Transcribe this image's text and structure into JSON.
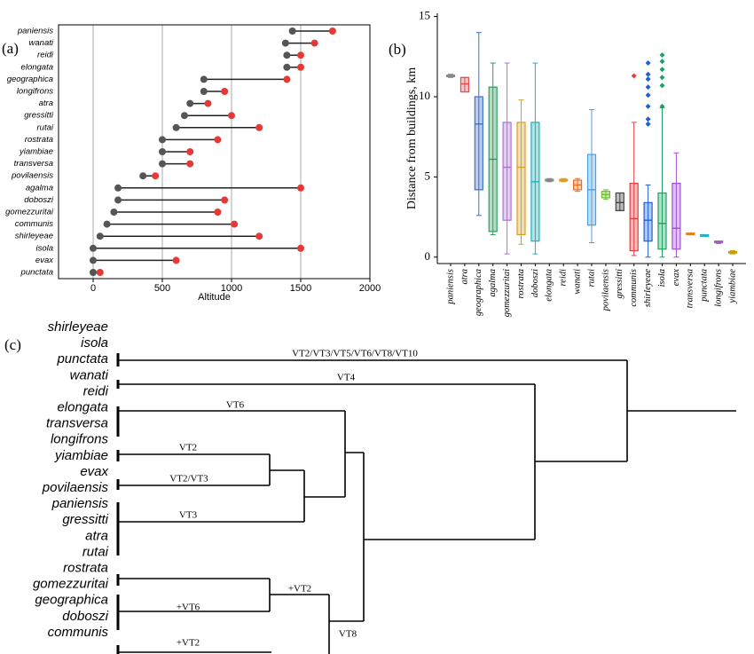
{
  "chart_data": [
    {
      "type": "dumbbell",
      "panel_label": "(a)",
      "xlabel": "Altitude",
      "categories": [
        "paniensis",
        "wanati",
        "reidi",
        "elongata",
        "geographica",
        "longifrons",
        "atra",
        "gressitti",
        "rutai",
        "rostrata",
        "yiambiae",
        "transversa",
        "povilaensis",
        "agalma",
        "doboszi",
        "gomezzuritai",
        "communis",
        "shirleyeae",
        "isola",
        "evax",
        "punctata"
      ],
      "min_values": [
        1440,
        1390,
        1400,
        1400,
        800,
        800,
        700,
        660,
        600,
        500,
        500,
        500,
        360,
        180,
        180,
        150,
        100,
        50,
        0,
        0,
        0
      ],
      "max_values": [
        1730,
        1600,
        1500,
        1500,
        1400,
        950,
        830,
        1000,
        1200,
        900,
        700,
        700,
        450,
        1500,
        950,
        900,
        1020,
        1200,
        1500,
        600,
        50
      ],
      "min_color": "#555555",
      "max_color": "#e53935",
      "xlim": [
        -250,
        2000
      ],
      "xticks": [
        0,
        500,
        1000,
        1500,
        2000
      ],
      "grid": true
    },
    {
      "type": "box",
      "panel_label": "(b)",
      "ylabel": "Distance from buildings, km",
      "categories": [
        "paniensis",
        "atra",
        "geographica",
        "agalma",
        "gomezzuritai",
        "rostrata",
        "doboszi",
        "elongata",
        "reidi",
        "wanati",
        "rutai",
        "povilaensis",
        "gressitti",
        "communis",
        "shirleyeae",
        "isola",
        "evax",
        "transversa",
        "punctata",
        "longifrons",
        "yiambiae"
      ],
      "colors": [
        "#888888",
        "#e05050",
        "#3a6fd0",
        "#2a9d5c",
        "#b070d8",
        "#d8a020",
        "#20b0b8",
        "#888888",
        "#d8a020",
        "#e87020",
        "#4aa0e0",
        "#6cc02a",
        "#444444",
        "#e04040",
        "#2060d0",
        "#20a060",
        "#a050d0",
        "#e08020",
        "#20b0c0",
        "#a060c0",
        "#c8a000"
      ],
      "min": [
        11.2,
        10.3,
        2.6,
        1.4,
        0.2,
        0.8,
        0.2,
        4.7,
        4.7,
        4.1,
        0.9,
        3.6,
        2.9,
        0.1,
        0,
        0,
        0,
        1.4,
        1.3,
        0.85,
        0.2
      ],
      "q1": [
        11.25,
        10.3,
        4.2,
        1.6,
        2.3,
        1.4,
        1.0,
        4.75,
        4.75,
        4.2,
        2.0,
        3.7,
        2.9,
        0.4,
        1.0,
        0.5,
        0.5,
        1.4,
        1.3,
        0.9,
        0.25
      ],
      "median": [
        11.3,
        10.8,
        8.3,
        6.1,
        5.6,
        5.6,
        4.7,
        4.8,
        4.8,
        4.5,
        4.2,
        3.9,
        3.4,
        2.4,
        2.3,
        2.1,
        1.8,
        1.45,
        1.35,
        0.95,
        0.3
      ],
      "q3": [
        11.35,
        11.2,
        10.0,
        10.6,
        8.4,
        8.4,
        8.4,
        4.85,
        4.85,
        4.8,
        6.4,
        4.1,
        4.0,
        4.6,
        3.4,
        4.0,
        4.6,
        1.5,
        1.4,
        1.0,
        0.35
      ],
      "max": [
        11.4,
        11.2,
        14.0,
        12.1,
        12.1,
        9.8,
        12.1,
        4.9,
        4.9,
        4.9,
        9.2,
        4.2,
        4.0,
        8.4,
        4.5,
        9.3,
        6.5,
        1.5,
        1.4,
        1.0,
        0.4
      ],
      "outliers": [
        [],
        [],
        [],
        [],
        [],
        [],
        [],
        [],
        [],
        [],
        [],
        [],
        [],
        [
          11.3
        ],
        [
          8.3,
          8.6,
          9.4,
          10.1,
          10.6,
          11.1,
          11.4,
          12.1
        ],
        [
          9.4,
          10.7,
          11.2,
          11.7,
          12.2,
          12.6
        ],
        [],
        [],
        [],
        [],
        []
      ],
      "ylim": [
        -0.4,
        15.2
      ],
      "yticks": [
        0,
        5,
        10,
        15
      ]
    },
    {
      "type": "dendrogram",
      "panel_label": "(c)",
      "leaves": [
        "shirleyeae",
        "isola",
        "punctata",
        "wanati",
        "reidi",
        "elongata",
        "transversa",
        "longifrons",
        "yiambiae",
        "evax",
        "povilaensis",
        "paniensis",
        "gressitti",
        "atra",
        "rutai",
        "rostrata",
        "gomezzuritai",
        "geographica",
        "doboszi",
        "communis"
      ],
      "branch_labels": [
        "VT2/VT3/VT5/VT6/VT8/VT10",
        "VT4",
        "VT6",
        "VT2",
        "VT2/VT3",
        "VT3",
        "+VT2",
        "+VT6",
        "VT8",
        "+VT2"
      ]
    }
  ]
}
